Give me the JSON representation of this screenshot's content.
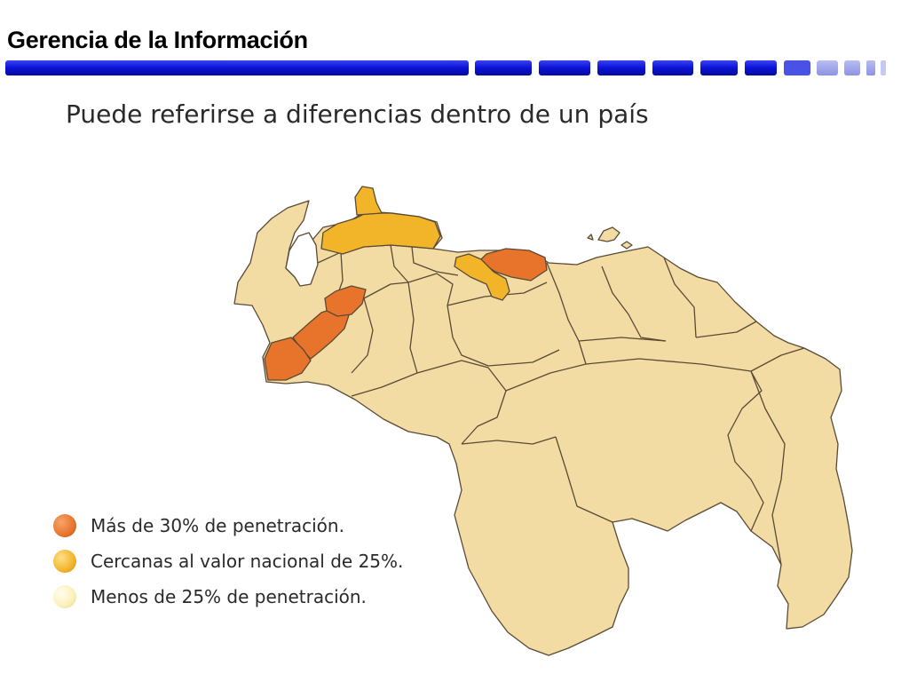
{
  "header": {
    "title": "Gerencia de la Información"
  },
  "subtitle": "Puede referirse a diferencias dentro de un país",
  "colors": {
    "header_bar": "#0a12d6",
    "header_bar_light": "#9aa0ea",
    "high": "#e8742c",
    "mid": "#f2b52a",
    "low": "#f2dca3",
    "border": "#5a4a36",
    "lake": "#ffffff"
  },
  "legend": {
    "items": [
      {
        "label": "Más de 30% de penetración.",
        "color": "#e8742c"
      },
      {
        "label": "Cercanas al valor nacional de 25%.",
        "color": "#f2b52a"
      },
      {
        "label": "Menos de 25% de penetración.",
        "color": "#fbf0b8"
      }
    ]
  }
}
